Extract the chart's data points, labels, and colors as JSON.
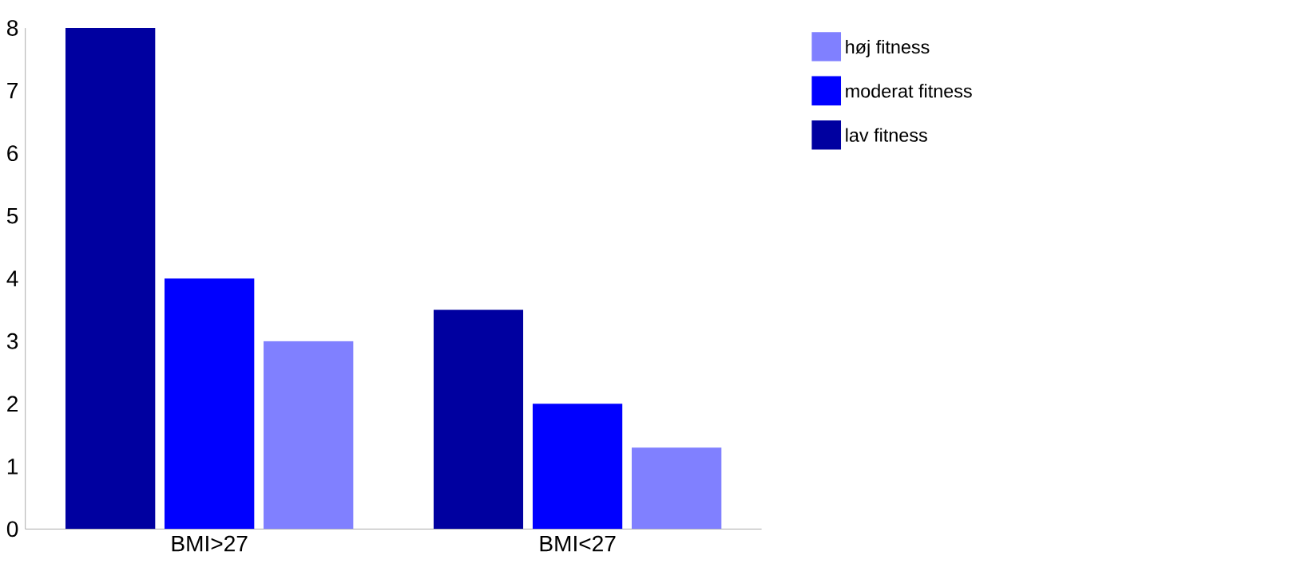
{
  "chart_data": {
    "type": "bar",
    "categories": [
      "BMI>27",
      "BMI<27"
    ],
    "series": [
      {
        "name": "lav fitness",
        "color": "#0000a0",
        "values": [
          8,
          3.5
        ]
      },
      {
        "name": "moderat fitness",
        "color": "#0000ff",
        "values": [
          4,
          2
        ]
      },
      {
        "name": "høj fitness",
        "color": "#8080ff",
        "values": [
          3,
          1.3
        ]
      }
    ],
    "ylim": [
      0,
      8
    ],
    "yticks": [
      0,
      1,
      2,
      3,
      4,
      5,
      6,
      7,
      8
    ],
    "grid": false,
    "legend": "top right"
  }
}
